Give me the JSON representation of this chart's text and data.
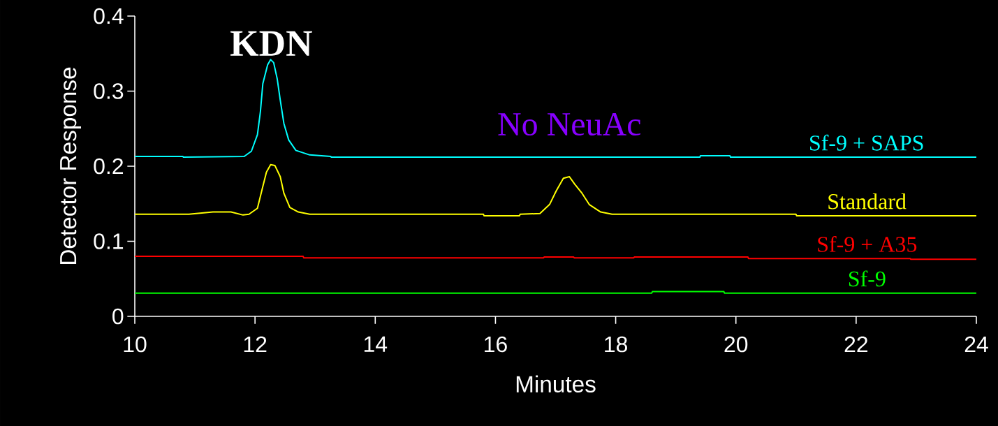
{
  "chart_data": {
    "type": "line",
    "xlabel": "Minutes",
    "ylabel": "Detector Response",
    "xlim": [
      10,
      24
    ],
    "ylim": [
      0,
      0.4
    ],
    "xticks": [
      10,
      12,
      14,
      16,
      18,
      20,
      22,
      24
    ],
    "yticks": [
      0,
      0.1,
      0.2,
      0.3,
      0.4
    ],
    "grid": false,
    "legend": false,
    "marker": "none",
    "line_style": "solid",
    "annotations": [
      {
        "text": "**KDN**",
        "x": 12.27,
        "y": 0.342
      },
      {
        "text": "No NeuAc",
        "x": 17.23,
        "y": 0.186
      }
    ],
    "series": [
      {
        "name": "Sf-9 + SAPS",
        "color": "#00ffff",
        "x": [
          10,
          10.8,
          10.81,
          11.82,
          11.94,
          12.04,
          12.09,
          12.13,
          12.21,
          12.26,
          12.31,
          12.37,
          12.42,
          12.48,
          12.56,
          12.68,
          12.91,
          13.26,
          13.27,
          19.4,
          19.41,
          19.9,
          19.91,
          24
        ],
        "values": [
          0.213,
          0.213,
          0.212,
          0.213,
          0.22,
          0.242,
          0.273,
          0.31,
          0.335,
          0.342,
          0.338,
          0.316,
          0.288,
          0.257,
          0.235,
          0.221,
          0.215,
          0.213,
          0.212,
          0.212,
          0.214,
          0.214,
          0.212,
          0.212
        ]
      },
      {
        "name": "Standard",
        "color": "#ffff00",
        "x": [
          10,
          10.6,
          10.9,
          11.3,
          11.6,
          11.8,
          11.9,
          12.04,
          12.13,
          12.19,
          12.26,
          12.33,
          12.42,
          12.48,
          12.58,
          12.72,
          12.91,
          15.8,
          15.81,
          16.4,
          16.41,
          16.74,
          16.9,
          17.01,
          17.13,
          17.23,
          17.32,
          17.44,
          17.56,
          17.75,
          17.94,
          21,
          21.01,
          24
        ],
        "values": [
          0.136,
          0.136,
          0.136,
          0.139,
          0.139,
          0.135,
          0.136,
          0.144,
          0.173,
          0.192,
          0.202,
          0.201,
          0.186,
          0.164,
          0.145,
          0.139,
          0.136,
          0.136,
          0.134,
          0.134,
          0.136,
          0.137,
          0.149,
          0.167,
          0.184,
          0.186,
          0.176,
          0.164,
          0.149,
          0.139,
          0.136,
          0.136,
          0.134,
          0.134
        ]
      },
      {
        "name": "Sf-9 + A35",
        "color": "#ff0000",
        "x": [
          10,
          12.8,
          12.81,
          16.8,
          16.81,
          17.3,
          17.31,
          18.3,
          18.31,
          20.2,
          20.21,
          22.9,
          22.91,
          24
        ],
        "values": [
          0.08,
          0.08,
          0.078,
          0.078,
          0.079,
          0.079,
          0.078,
          0.078,
          0.079,
          0.079,
          0.077,
          0.077,
          0.076,
          0.076
        ]
      },
      {
        "name": "Sf-9",
        "color": "#00ff00",
        "x": [
          10,
          18.6,
          18.61,
          19.8,
          19.81,
          24
        ],
        "values": [
          0.031,
          0.031,
          0.033,
          0.033,
          0.031,
          0.031
        ]
      }
    ]
  }
}
